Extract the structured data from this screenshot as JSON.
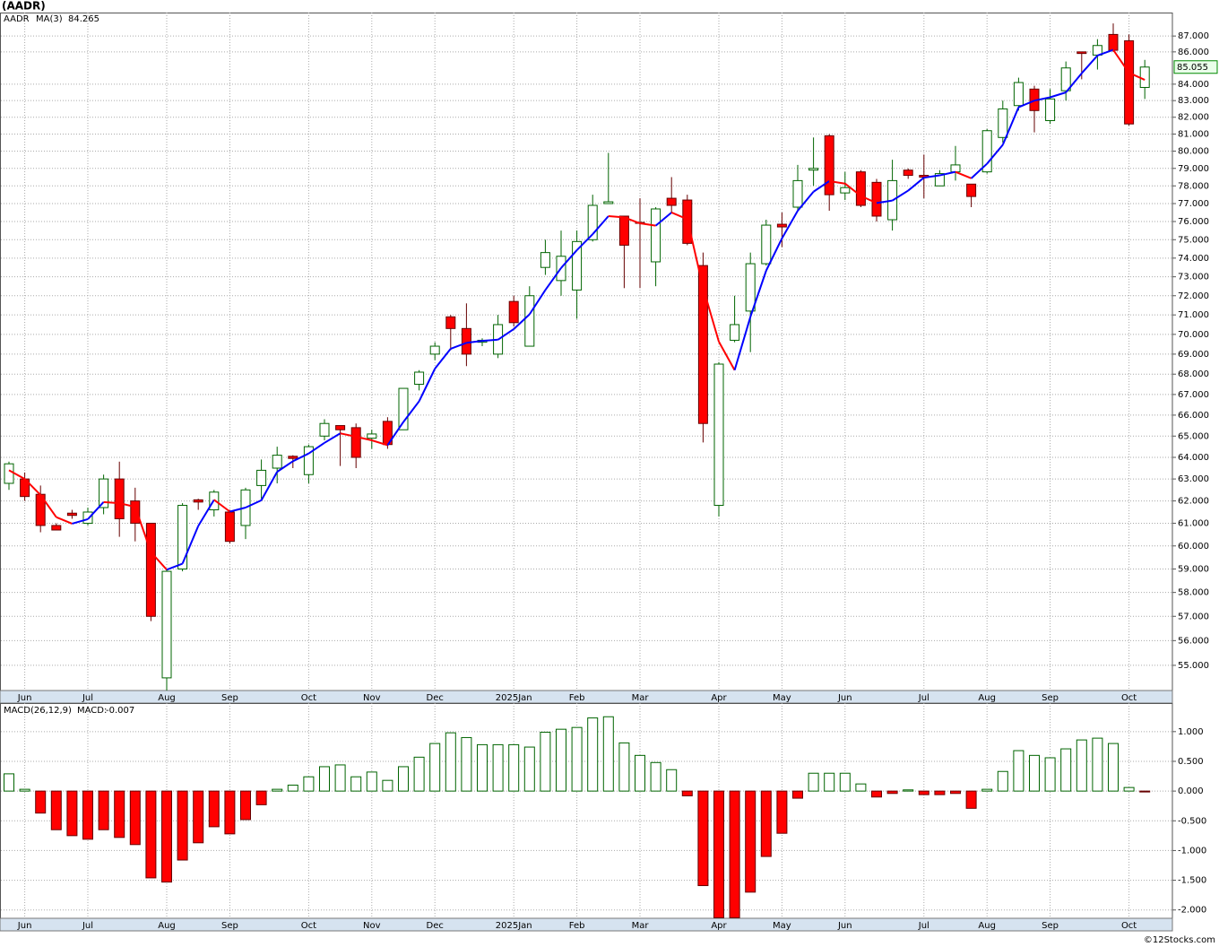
{
  "watermark": "©12Stocks.com",
  "chart_data": [
    {
      "type": "candlestick",
      "title": "(AADR)",
      "symbol": "AADR",
      "categories": [
        null,
        "Jun",
        null,
        null,
        null,
        "Jul",
        null,
        null,
        null,
        null,
        "Aug",
        null,
        null,
        null,
        "Sep",
        null,
        null,
        null,
        null,
        "Oct",
        null,
        null,
        null,
        "Nov",
        null,
        null,
        null,
        "Dec",
        null,
        null,
        null,
        null,
        "2025Jan",
        null,
        null,
        null,
        "Feb",
        null,
        null,
        null,
        "Mar",
        null,
        null,
        null,
        null,
        "Apr",
        null,
        null,
        null,
        "May",
        null,
        null,
        null,
        "Jun",
        null,
        null,
        null,
        null,
        "Jul",
        null,
        null,
        null,
        "Aug",
        null,
        null,
        null,
        "Sep",
        null,
        null,
        null,
        null,
        "Oct",
        null
      ],
      "open": [
        62.8,
        63.0,
        62.3,
        60.9,
        61.45,
        61.0,
        61.7,
        63.0,
        62.0,
        61.0,
        54.5,
        59.0,
        62.05,
        61.6,
        61.5,
        60.9,
        62.7,
        63.5,
        64.05,
        63.2,
        65.0,
        65.5,
        65.4,
        64.9,
        65.7,
        65.3,
        67.5,
        69.0,
        70.9,
        70.3,
        69.6,
        69.0,
        71.7,
        69.4,
        73.5,
        72.8,
        72.3,
        75.0,
        77.0,
        76.3,
        75.95,
        73.8,
        77.3,
        77.2,
        73.6,
        61.8,
        69.7,
        71.2,
        73.7,
        75.85,
        76.8,
        78.9,
        80.9,
        77.6,
        78.8,
        78.2,
        76.1,
        78.9,
        78.6,
        78.0,
        78.8,
        78.1,
        78.8,
        80.8,
        82.7,
        83.7,
        81.8,
        83.6,
        86.0,
        85.8,
        87.1,
        86.7,
        83.8
      ],
      "high": [
        63.8,
        63.3,
        62.7,
        61.0,
        61.6,
        61.7,
        63.2,
        63.8,
        62.6,
        61.0,
        59.0,
        61.9,
        62.1,
        62.5,
        61.6,
        62.6,
        63.9,
        64.5,
        64.1,
        64.6,
        65.8,
        65.5,
        65.6,
        65.3,
        65.9,
        67.3,
        68.2,
        69.6,
        71.0,
        71.6,
        69.8,
        71.0,
        72.0,
        72.5,
        75.0,
        75.5,
        75.5,
        77.5,
        79.9,
        76.3,
        77.3,
        76.8,
        78.5,
        77.5,
        74.3,
        68.6,
        72.0,
        74.3,
        76.1,
        76.5,
        79.2,
        80.8,
        81.0,
        78.8,
        78.9,
        78.4,
        79.5,
        79.0,
        79.8,
        78.9,
        80.3,
        78.1,
        81.3,
        83.0,
        84.4,
        83.9,
        83.7,
        85.4,
        86.0,
        86.8,
        87.8,
        87.1,
        85.5
      ],
      "low": [
        62.5,
        62.0,
        60.6,
        60.7,
        61.2,
        60.9,
        61.4,
        60.4,
        60.2,
        56.8,
        54.0,
        58.9,
        61.6,
        61.3,
        60.1,
        60.3,
        62.1,
        62.8,
        63.5,
        62.8,
        64.8,
        63.6,
        63.5,
        64.4,
        64.4,
        65.3,
        67.2,
        68.7,
        69.2,
        68.4,
        69.4,
        68.8,
        70.4,
        69.4,
        73.1,
        72.0,
        70.8,
        74.9,
        77.0,
        72.4,
        72.4,
        72.5,
        76.5,
        74.7,
        64.7,
        61.3,
        69.6,
        69.1,
        73.6,
        74.6,
        76.6,
        78.0,
        76.6,
        77.2,
        76.8,
        76.0,
        75.5,
        78.4,
        77.3,
        78.0,
        78.3,
        76.8,
        78.7,
        80.5,
        82.4,
        81.1,
        81.6,
        83.0,
        84.3,
        84.9,
        86.0,
        81.5,
        83.1
      ],
      "close": [
        63.7,
        62.2,
        60.9,
        60.7,
        61.35,
        61.5,
        63.0,
        61.2,
        61.0,
        57.0,
        58.9,
        61.8,
        61.95,
        62.4,
        60.2,
        62.5,
        63.4,
        64.1,
        63.95,
        64.5,
        65.6,
        65.3,
        64.0,
        65.1,
        64.6,
        67.3,
        68.1,
        69.4,
        70.3,
        69.0,
        69.7,
        70.5,
        70.6,
        72.0,
        74.3,
        74.1,
        74.9,
        76.9,
        77.1,
        74.7,
        75.9,
        76.7,
        76.9,
        74.8,
        65.6,
        68.5,
        70.5,
        73.7,
        75.8,
        75.7,
        78.3,
        79.0,
        77.5,
        77.9,
        76.9,
        76.3,
        78.3,
        78.6,
        78.5,
        78.7,
        79.2,
        77.4,
        81.2,
        82.5,
        84.1,
        82.4,
        83.1,
        85.0,
        85.9,
        86.4,
        86.1,
        81.6,
        85.055
      ],
      "up_color": "#006400",
      "down_color": "#ff0000",
      "symbol_color": "#008000",
      "series": [
        {
          "name": "MA(3)",
          "color": "#0000ff",
          "down_color": "#ff0000",
          "values": [
            63.4,
            63.0,
            62.27,
            61.27,
            60.98,
            61.18,
            61.95,
            61.9,
            61.73,
            59.73,
            58.97,
            59.23,
            60.88,
            62.05,
            61.52,
            61.7,
            62.03,
            63.33,
            63.82,
            64.18,
            64.68,
            65.13,
            64.97,
            64.8,
            64.57,
            65.67,
            66.67,
            68.27,
            69.27,
            69.57,
            69.67,
            69.73,
            70.27,
            71.03,
            72.3,
            73.47,
            74.43,
            75.3,
            76.3,
            76.23,
            75.9,
            75.77,
            76.5,
            76.13,
            72.43,
            69.63,
            68.2,
            70.9,
            73.33,
            75.07,
            76.6,
            77.67,
            78.27,
            78.13,
            77.43,
            77.03,
            77.17,
            77.73,
            78.47,
            78.6,
            78.8,
            78.43,
            79.27,
            80.37,
            82.6,
            83.0,
            83.2,
            83.5,
            84.67,
            85.77,
            86.13,
            84.7,
            84.265
          ]
        }
      ],
      "ylim": [
        54,
        88.5
      ],
      "yscale": "log",
      "grid": true,
      "yticks": [
        {
          "value": 55,
          "label": "55.000"
        },
        {
          "value": 56,
          "label": "56.000"
        },
        {
          "value": 57,
          "label": "57.000"
        },
        {
          "value": 58,
          "label": "58.000"
        },
        {
          "value": 59,
          "label": "59.000"
        },
        {
          "value": 60,
          "label": "60.000"
        },
        {
          "value": 61,
          "label": "61.000"
        },
        {
          "value": 62,
          "label": "62.000"
        },
        {
          "value": 63,
          "label": "63.000"
        },
        {
          "value": 64,
          "label": "64.000"
        },
        {
          "value": 65,
          "label": "65.000"
        },
        {
          "value": 66,
          "label": "66.000"
        },
        {
          "value": 67,
          "label": "67.000"
        },
        {
          "value": 68,
          "label": "68.000"
        },
        {
          "value": 69,
          "label": "69.000"
        },
        {
          "value": 70,
          "label": "70.000"
        },
        {
          "value": 71,
          "label": "71.000"
        },
        {
          "value": 72,
          "label": "72.000"
        },
        {
          "value": 73,
          "label": "73.000"
        },
        {
          "value": 74,
          "label": "74.000"
        },
        {
          "value": 75,
          "label": "75.000"
        },
        {
          "value": 76,
          "label": "76.000"
        },
        {
          "value": 77,
          "label": "77.000"
        },
        {
          "value": 78,
          "label": "78.000"
        },
        {
          "value": 79,
          "label": "79.000"
        },
        {
          "value": 80,
          "label": "80.000"
        },
        {
          "value": 81,
          "label": "81.000"
        },
        {
          "value": 82,
          "label": "82.000"
        },
        {
          "value": 83,
          "label": "83.000"
        },
        {
          "value": 84,
          "label": "84.000"
        },
        {
          "value": 86,
          "label": "86.000"
        },
        {
          "value": 87,
          "label": "87.000"
        }
      ]
    },
    {
      "type": "bar",
      "title": "MACD(26,12,9)",
      "legend_label": "MACD:",
      "categories": [
        null,
        "Jun",
        null,
        null,
        null,
        "Jul",
        null,
        null,
        null,
        null,
        "Aug",
        null,
        null,
        null,
        "Sep",
        null,
        null,
        null,
        null,
        "Oct",
        null,
        null,
        null,
        "Nov",
        null,
        null,
        null,
        "Dec",
        null,
        null,
        null,
        null,
        "2025Jan",
        null,
        null,
        null,
        "Feb",
        null,
        null,
        null,
        "Mar",
        null,
        null,
        null,
        null,
        "Apr",
        null,
        null,
        null,
        "May",
        null,
        null,
        null,
        "Jun",
        null,
        null,
        null,
        null,
        "Jul",
        null,
        null,
        null,
        "Aug",
        null,
        null,
        null,
        "Sep",
        null,
        null,
        null,
        null,
        "Oct",
        null
      ],
      "values": [
        0.29,
        0.03,
        -0.37,
        -0.65,
        -0.75,
        -0.81,
        -0.65,
        -0.78,
        -0.9,
        -1.46,
        -1.53,
        -1.16,
        -0.87,
        -0.6,
        -0.72,
        -0.48,
        -0.23,
        0.03,
        0.1,
        0.24,
        0.41,
        0.44,
        0.24,
        0.32,
        0.18,
        0.41,
        0.57,
        0.8,
        0.98,
        0.9,
        0.78,
        0.78,
        0.78,
        0.74,
        0.99,
        1.04,
        1.07,
        1.23,
        1.25,
        0.81,
        0.6,
        0.48,
        0.36,
        -0.08,
        -1.59,
        -2.13,
        -2.13,
        -1.7,
        -1.1,
        -0.71,
        -0.12,
        0.3,
        0.3,
        0.3,
        0.12,
        -0.1,
        -0.04,
        0.02,
        -0.06,
        -0.06,
        -0.04,
        -0.29,
        0.03,
        0.33,
        0.68,
        0.6,
        0.56,
        0.71,
        0.86,
        0.89,
        0.8,
        0.06,
        -0.007
      ],
      "color": "#006400",
      "negative_color": "#ff0000",
      "ylim": [
        -2.14,
        1.48
      ],
      "grid": true,
      "yticks": [
        {
          "value": 1,
          "label": "1.000"
        },
        {
          "value": 0.5,
          "label": "0.500"
        },
        {
          "value": 0,
          "label": "0.000"
        },
        {
          "value": -0.5,
          "label": "-0.500"
        },
        {
          "value": -1,
          "label": "-1.000"
        },
        {
          "value": -1.5,
          "label": "-1.500"
        },
        {
          "value": -2,
          "label": "-2.000"
        }
      ]
    }
  ]
}
